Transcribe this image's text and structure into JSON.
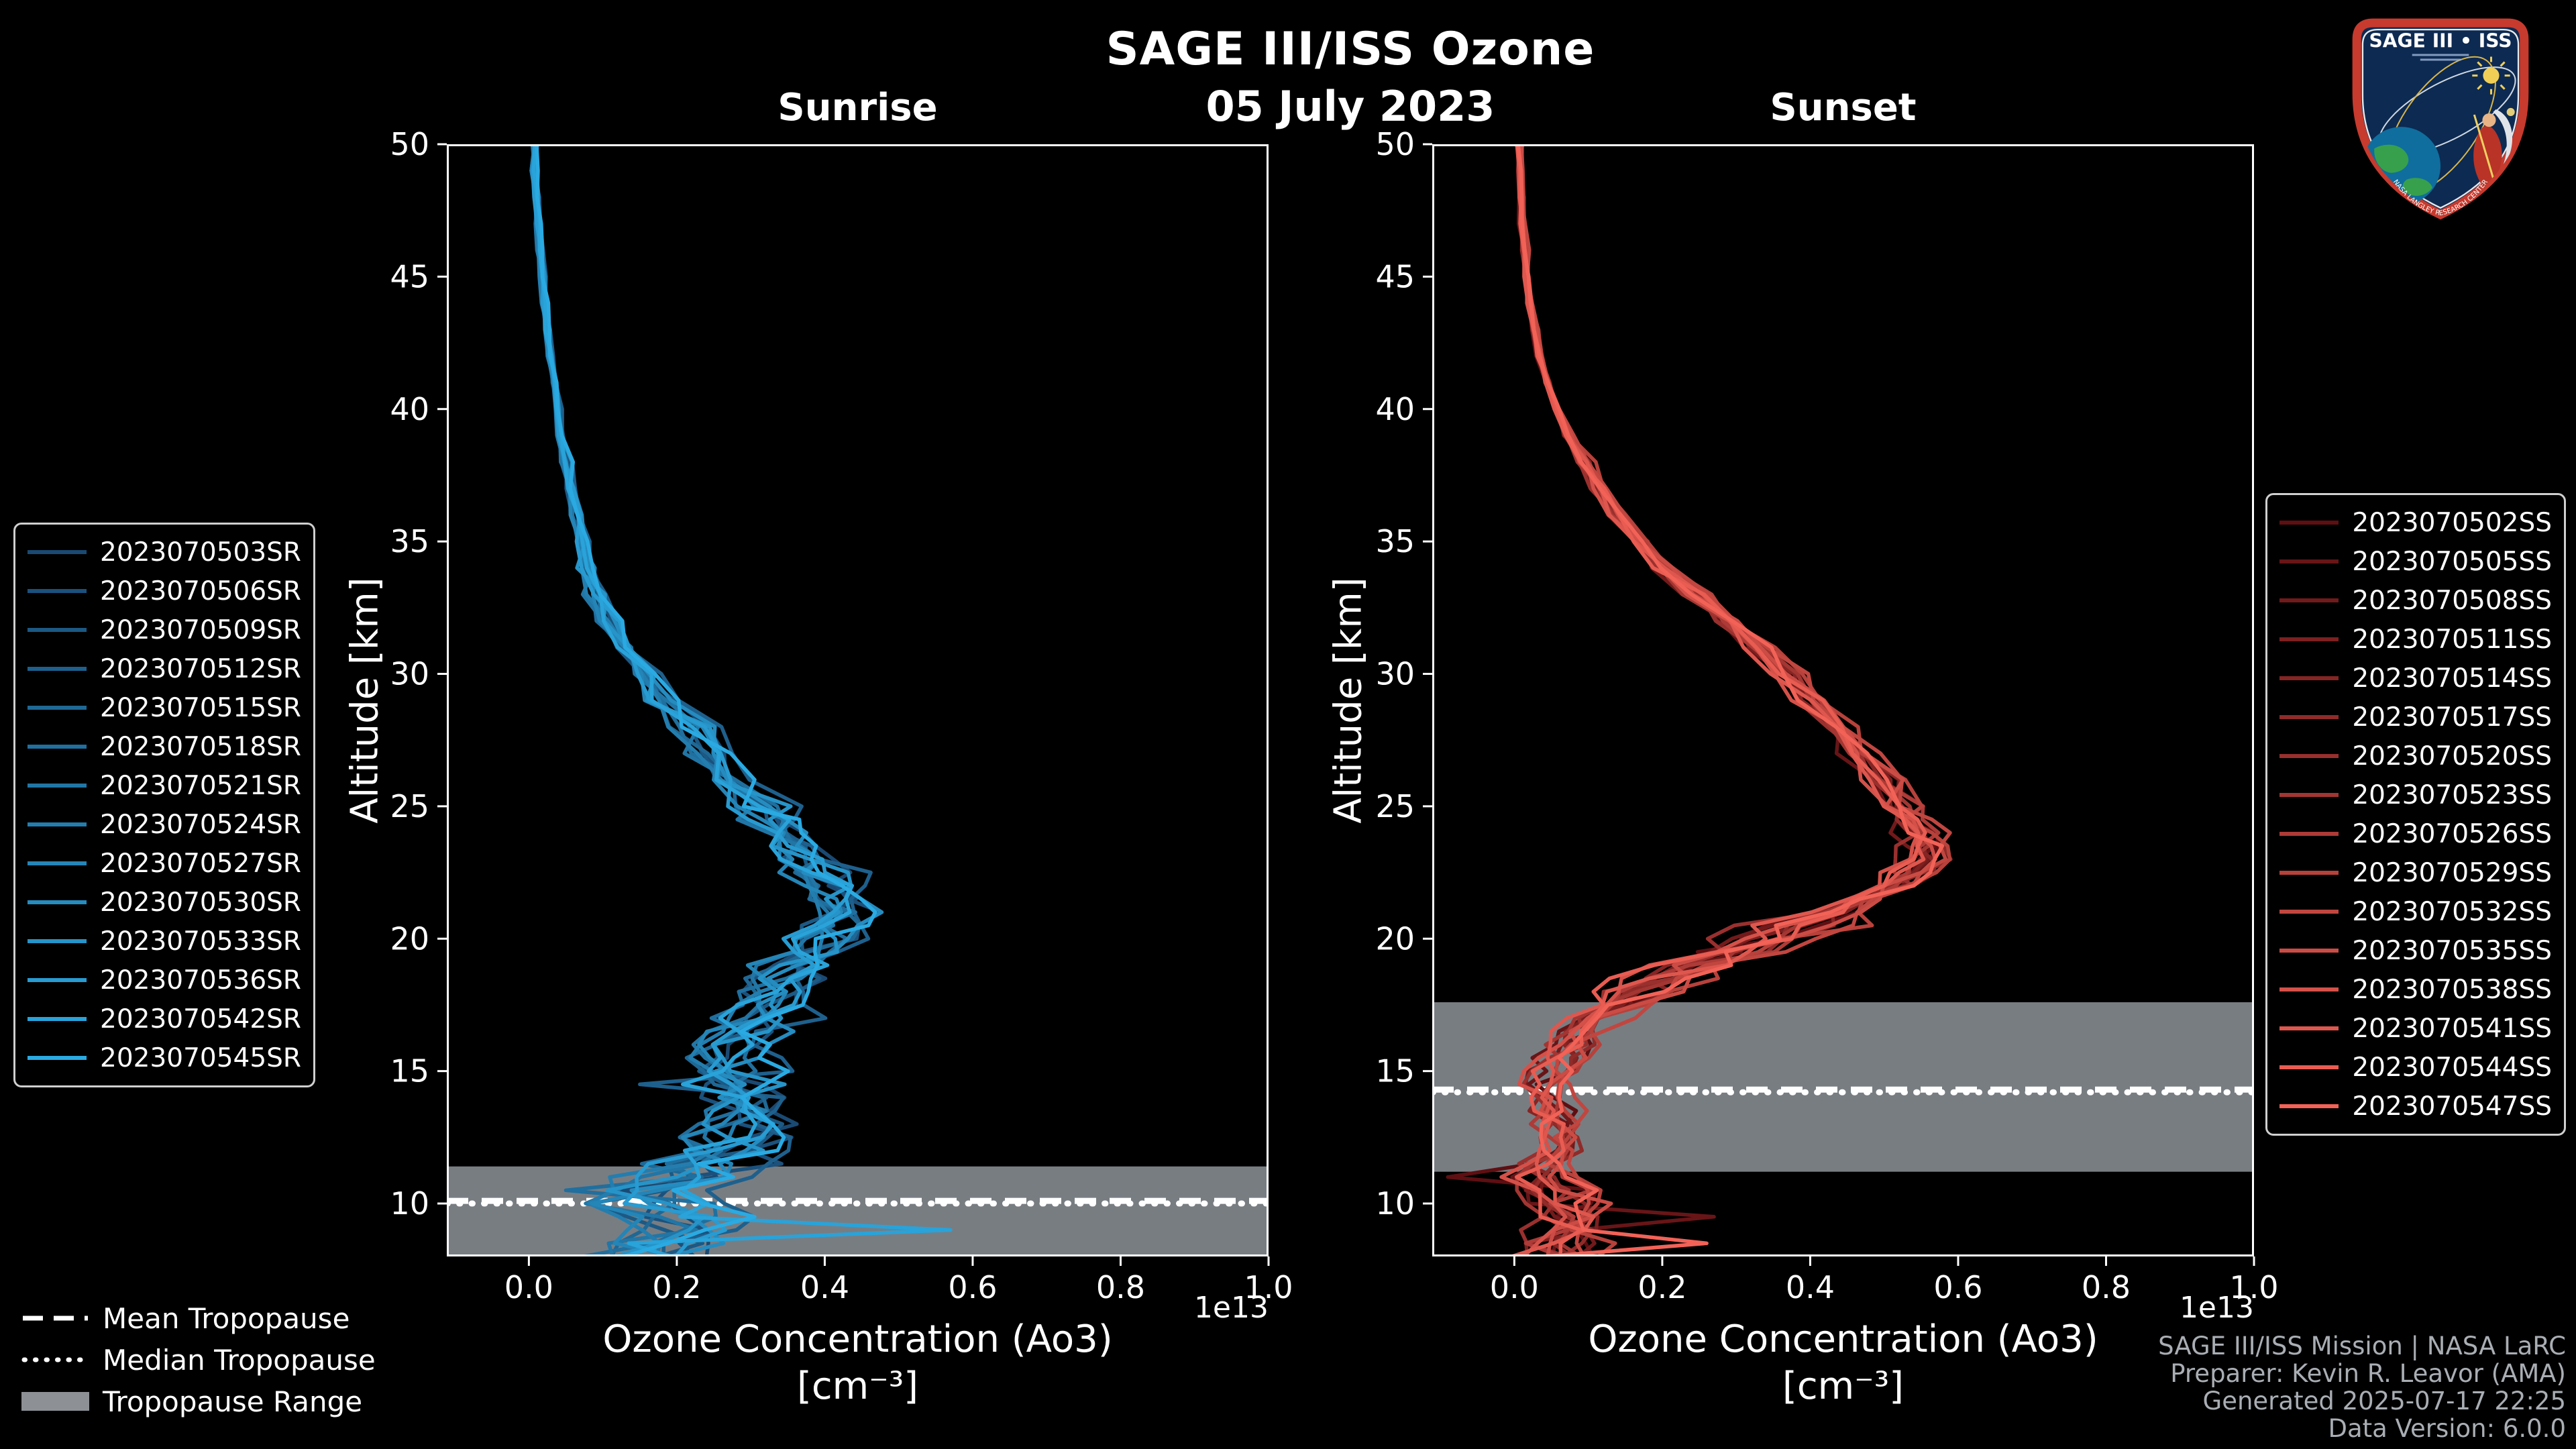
{
  "header": {
    "title": "SAGE III/ISS Ozone",
    "date": "05 July 2023"
  },
  "colors": {
    "background": "#000000",
    "frame": "#ffffff",
    "tick_label": "#ffffff",
    "tropopause_band": "#787d82",
    "tropopause_line": "#ffffff",
    "legend_border": "#cfcfcf",
    "credits_text": "#a9aeb4"
  },
  "chart_data": [
    {
      "type": "line",
      "title": "Sunrise",
      "xlabel": "Ozone Concentration (Ao3)",
      "xlabel_units": "[cm⁻³]",
      "x_offset_text": "1e13",
      "ylabel": "Altitude [km]",
      "xlim": [
        -0.111,
        1.0
      ],
      "ylim": [
        8,
        50
      ],
      "grid": false,
      "legend_position": "outside-left",
      "x_ticks": {
        "values": [
          0.0,
          0.2,
          0.4,
          0.6,
          0.8,
          1.0
        ],
        "labels": [
          "0.0",
          "0.2",
          "0.4",
          "0.6",
          "0.8",
          "1.0"
        ]
      },
      "y_ticks": {
        "values": [
          10,
          15,
          20,
          25,
          30,
          35,
          40,
          45,
          50
        ],
        "labels": [
          "10",
          "15",
          "20",
          "25",
          "30",
          "35",
          "40",
          "45",
          "50"
        ]
      },
      "line_color_start": "#1a4a73",
      "line_color_end": "#2aaae2",
      "series_names": [
        "2023070503SR",
        "2023070506SR",
        "2023070509SR",
        "2023070512SR",
        "2023070515SR",
        "2023070518SR",
        "2023070521SR",
        "2023070524SR",
        "2023070527SR",
        "2023070530SR",
        "2023070533SR",
        "2023070536SR",
        "2023070542SR",
        "2023070545SR"
      ],
      "altitudes_km": [
        50,
        49,
        48,
        47,
        46,
        45,
        44,
        43,
        42,
        41,
        40,
        39,
        38,
        37,
        36,
        35,
        34,
        33,
        32,
        31,
        30,
        29,
        28,
        27,
        26,
        25,
        24.5,
        24,
        23.5,
        23,
        22.5,
        22,
        21.5,
        21,
        20.5,
        20,
        19.5,
        19,
        18.5,
        18,
        17.5,
        17,
        16.5,
        16,
        15.5,
        15,
        14.5,
        14,
        13.5,
        13,
        12.5,
        12,
        11.5,
        11,
        10.5,
        10,
        9.5,
        9,
        8.5,
        8
      ],
      "mean_profile_1e13": [
        0.008,
        0.009,
        0.011,
        0.013,
        0.016,
        0.019,
        0.022,
        0.026,
        0.03,
        0.035,
        0.04,
        0.046,
        0.053,
        0.06,
        0.066,
        0.073,
        0.083,
        0.096,
        0.111,
        0.134,
        0.16,
        0.192,
        0.228,
        0.257,
        0.283,
        0.318,
        0.335,
        0.351,
        0.368,
        0.384,
        0.4,
        0.416,
        0.43,
        0.44,
        0.425,
        0.407,
        0.39,
        0.373,
        0.356,
        0.34,
        0.329,
        0.318,
        0.307,
        0.296,
        0.29,
        0.284,
        0.29,
        0.296,
        0.301,
        0.307,
        0.295,
        0.284,
        0.273,
        0.262,
        0.229,
        0.196,
        0.207,
        0.218,
        0.196,
        0.173
      ],
      "spread_profile_1e13": [
        0.003,
        0.003,
        0.003,
        0.003,
        0.003,
        0.003,
        0.003,
        0.003,
        0.003,
        0.003,
        0.003,
        0.006,
        0.006,
        0.006,
        0.006,
        0.006,
        0.013,
        0.013,
        0.013,
        0.013,
        0.013,
        0.024,
        0.024,
        0.024,
        0.024,
        0.035,
        0.035,
        0.035,
        0.035,
        0.035,
        0.035,
        0.035,
        0.035,
        0.035,
        0.045,
        0.045,
        0.045,
        0.045,
        0.045,
        0.045,
        0.045,
        0.045,
        0.045,
        0.045,
        0.045,
        0.045,
        0.055,
        0.055,
        0.055,
        0.055,
        0.055,
        0.055,
        0.085,
        0.085,
        0.085,
        0.085,
        0.065,
        0.065,
        0.065,
        0.065
      ],
      "outliers": [
        {
          "series_index": 12,
          "altitude_km": 9.0,
          "value_1e13": 0.57
        },
        {
          "series_index": 3,
          "altitude_km": 14.5,
          "value_1e13": 0.15
        },
        {
          "series_index": 5,
          "altitude_km": 10.5,
          "value_1e13": 0.05
        }
      ],
      "tropopause_km": {
        "mean": 10.1,
        "median": 10.0,
        "range": [
          8.0,
          11.4
        ]
      }
    },
    {
      "type": "line",
      "title": "Sunset",
      "xlabel": "Ozone Concentration (Ao3)",
      "xlabel_units": "[cm⁻³]",
      "x_offset_text": "1e13",
      "ylabel": "Altitude [km]",
      "xlim": [
        -0.111,
        1.0
      ],
      "ylim": [
        8,
        50
      ],
      "grid": false,
      "legend_position": "outside-right",
      "x_ticks": {
        "values": [
          0.0,
          0.2,
          0.4,
          0.6,
          0.8,
          1.0
        ],
        "labels": [
          "0.0",
          "0.2",
          "0.4",
          "0.6",
          "0.8",
          "1.0"
        ]
      },
      "y_ticks": {
        "values": [
          10,
          15,
          20,
          25,
          30,
          35,
          40,
          45,
          50
        ],
        "labels": [
          "10",
          "15",
          "20",
          "25",
          "30",
          "35",
          "40",
          "45",
          "50"
        ]
      },
      "line_color_start": "#5e0f12",
      "line_color_end": "#f26257",
      "series_names": [
        "2023070502SS",
        "2023070505SS",
        "2023070508SS",
        "2023070511SS",
        "2023070514SS",
        "2023070517SS",
        "2023070520SS",
        "2023070523SS",
        "2023070526SS",
        "2023070529SS",
        "2023070532SS",
        "2023070535SS",
        "2023070538SS",
        "2023070541SS",
        "2023070544SS",
        "2023070547SS"
      ],
      "altitudes_km": [
        50,
        49,
        48,
        47,
        46,
        45,
        44,
        43,
        42,
        41,
        40,
        39,
        38,
        37,
        36,
        35,
        34,
        33,
        32,
        31,
        30,
        29,
        28,
        27,
        26,
        25,
        24.5,
        24,
        23.5,
        23,
        22.5,
        22,
        21.5,
        21,
        20.5,
        20,
        19.5,
        19,
        18.5,
        18,
        17.5,
        17,
        16.5,
        16,
        15.5,
        15,
        14.5,
        14,
        13.5,
        13,
        12.5,
        12,
        11.5,
        11,
        10.5,
        10,
        9.5,
        9,
        8.5,
        8
      ],
      "mean_profile_1e13": [
        0.008,
        0.009,
        0.01,
        0.012,
        0.015,
        0.018,
        0.022,
        0.028,
        0.035,
        0.045,
        0.058,
        0.075,
        0.096,
        0.118,
        0.14,
        0.173,
        0.207,
        0.251,
        0.296,
        0.335,
        0.373,
        0.407,
        0.44,
        0.473,
        0.507,
        0.529,
        0.54,
        0.551,
        0.557,
        0.562,
        0.546,
        0.529,
        0.484,
        0.44,
        0.395,
        0.351,
        0.307,
        0.262,
        0.218,
        0.173,
        0.145,
        0.118,
        0.101,
        0.084,
        0.073,
        0.062,
        0.056,
        0.051,
        0.056,
        0.062,
        0.067,
        0.073,
        0.067,
        0.062,
        0.067,
        0.073,
        0.084,
        0.096,
        0.079,
        0.062
      ],
      "spread_profile_1e13": [
        0.003,
        0.003,
        0.003,
        0.003,
        0.003,
        0.003,
        0.003,
        0.003,
        0.003,
        0.003,
        0.003,
        0.008,
        0.008,
        0.008,
        0.008,
        0.008,
        0.016,
        0.016,
        0.016,
        0.016,
        0.016,
        0.02,
        0.02,
        0.02,
        0.02,
        0.026,
        0.026,
        0.026,
        0.026,
        0.026,
        0.026,
        0.026,
        0.026,
        0.026,
        0.05,
        0.05,
        0.05,
        0.05,
        0.05,
        0.05,
        0.026,
        0.026,
        0.026,
        0.026,
        0.026,
        0.026,
        0.03,
        0.03,
        0.03,
        0.03,
        0.03,
        0.03,
        0.045,
        0.045,
        0.045,
        0.045,
        0.045,
        0.045,
        0.045,
        0.045
      ],
      "outliers": [
        {
          "series_index": 1,
          "altitude_km": 9.5,
          "value_1e13": 0.27
        },
        {
          "series_index": 0,
          "altitude_km": 11.0,
          "value_1e13": -0.09
        },
        {
          "series_index": 15,
          "altitude_km": 8.5,
          "value_1e13": 0.26
        }
      ],
      "tropopause_km": {
        "mean": 14.3,
        "median": 14.2,
        "range": [
          11.2,
          17.6
        ]
      }
    }
  ],
  "tropopause_legend": {
    "mean_label": "Mean Tropopause",
    "median_label": "Median Tropopause",
    "range_label": "Tropopause Range",
    "patch_color": "#8d9196"
  },
  "footer": {
    "lines": [
      "SAGE III/ISS Mission | NASA LaRC",
      "Preparer: Kevin R. Leavor (AMA)",
      "Generated 2025-07-17 22:25",
      "Data Version: 6.0.0"
    ]
  },
  "logo": {
    "title": "SAGE III • ISS",
    "bottom_text": "NASA LANGLEY RESEARCH CENTER"
  }
}
